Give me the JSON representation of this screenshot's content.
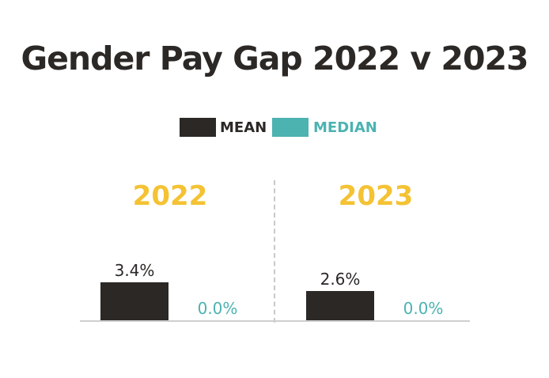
{
  "colors": {
    "mean": "#2b2826",
    "median": "#4cb3b0",
    "year": "#f4c233",
    "title": "#2b2826",
    "value_text": "#2b2826"
  },
  "chart_data": {
    "type": "bar",
    "title": "Gender Pay Gap 2022 v 2023",
    "xlabel": "",
    "ylabel": "",
    "ylim": [
      0,
      3.4
    ],
    "legend_position": "top-center",
    "grid": false,
    "categories": [
      "2022",
      "2023"
    ],
    "series": [
      {
        "name": "MEAN",
        "values": [
          3.4,
          2.6
        ],
        "labels": [
          "3.4%",
          "2.6%"
        ]
      },
      {
        "name": "MEDIAN",
        "values": [
          0.0,
          0.0
        ],
        "labels": [
          "0.0%",
          "0.0%"
        ]
      }
    ]
  }
}
